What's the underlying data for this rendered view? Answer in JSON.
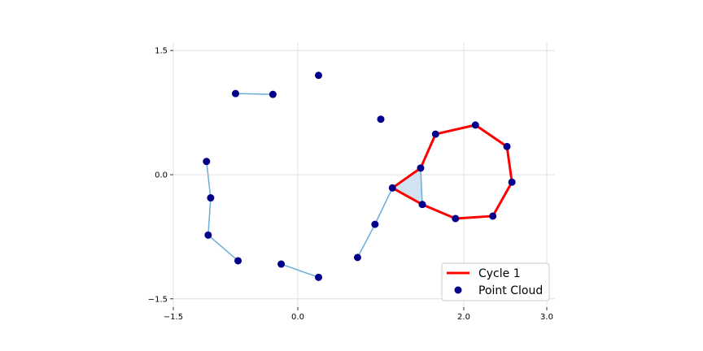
{
  "chart_data": {
    "type": "scatter",
    "title": "",
    "xlabel": "",
    "ylabel": "",
    "xlim": [
      -1.5,
      3.0
    ],
    "ylim": [
      -1.5,
      1.5
    ],
    "xticks": [
      -1.5,
      0.0,
      2.0,
      3.0
    ],
    "xtick_labels": [
      "−1.5",
      "0.0",
      "2.0",
      "3.0"
    ],
    "yticks": [
      1.5,
      0.0,
      -1.5
    ],
    "ytick_labels": [
      "1.5",
      "0.0",
      "−1.5"
    ],
    "grid": true,
    "legend_position": "lower-right",
    "legend": [
      {
        "label": "Cycle 1",
        "kind": "line",
        "color": "#ff0000"
      },
      {
        "label": "Point Cloud",
        "kind": "marker",
        "color": "#00008b"
      }
    ],
    "points": [
      [
        0.25,
        1.2
      ],
      [
        -0.75,
        0.98
      ],
      [
        -0.3,
        0.97
      ],
      [
        1.0,
        0.67
      ],
      [
        -1.1,
        0.16
      ],
      [
        -1.05,
        -0.28
      ],
      [
        -1.08,
        -0.73
      ],
      [
        -0.72,
        -1.04
      ],
      [
        -0.2,
        -1.08
      ],
      [
        0.25,
        -1.24
      ],
      [
        0.72,
        -1.0
      ],
      [
        0.93,
        -0.6
      ],
      [
        1.14,
        -0.16
      ],
      [
        1.48,
        0.08
      ],
      [
        1.66,
        0.49
      ],
      [
        2.14,
        0.6
      ],
      [
        2.52,
        0.34
      ],
      [
        2.58,
        -0.09
      ],
      [
        2.35,
        -0.5
      ],
      [
        1.9,
        -0.53
      ],
      [
        1.5,
        -0.36
      ]
    ],
    "edges": [
      [
        1,
        2
      ],
      [
        4,
        5
      ],
      [
        5,
        6
      ],
      [
        6,
        7
      ],
      [
        8,
        9
      ],
      [
        10,
        11
      ],
      [
        11,
        12
      ],
      [
        12,
        13
      ],
      [
        13,
        20
      ],
      [
        12,
        20
      ]
    ],
    "triangles": [
      [
        12,
        13,
        20
      ]
    ],
    "cycle": {
      "name": "Cycle 1",
      "vertices": [
        12,
        13,
        14,
        15,
        16,
        17,
        18,
        19,
        20
      ]
    },
    "colors": {
      "point": "#00008b",
      "edge": "#6baed6",
      "triangle_fill": "#c6dbef",
      "cycle": "#ff0000",
      "grid": "#d9d9d9"
    }
  }
}
